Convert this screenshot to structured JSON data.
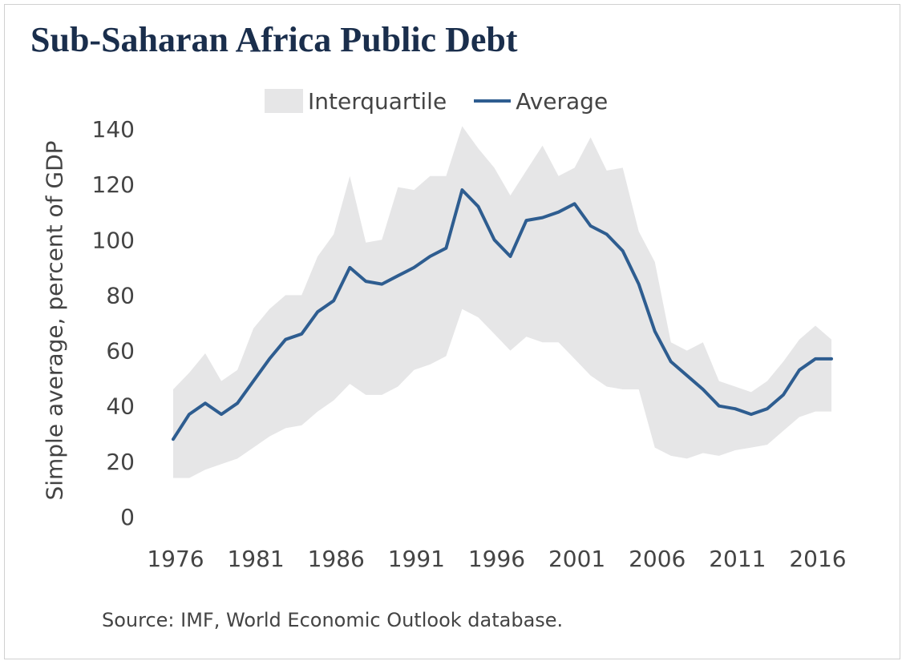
{
  "chart_data": {
    "type": "line",
    "title": "Sub-Saharan Africa Public Debt",
    "ylabel": "Simple average, percent of GDP",
    "xlabel": "",
    "ylim": [
      0,
      140
    ],
    "yticks": [
      0,
      20,
      40,
      60,
      80,
      100,
      120,
      140
    ],
    "xticks": [
      1976,
      1981,
      1986,
      1991,
      1996,
      2001,
      2006,
      2011,
      2016
    ],
    "legend_position": "top-center",
    "grid": false,
    "x": [
      1976,
      1977,
      1978,
      1979,
      1980,
      1981,
      1982,
      1983,
      1984,
      1985,
      1986,
      1987,
      1988,
      1989,
      1990,
      1991,
      1992,
      1993,
      1994,
      1995,
      1996,
      1997,
      1998,
      1999,
      2000,
      2001,
      2002,
      2003,
      2004,
      2005,
      2006,
      2007,
      2008,
      2009,
      2010,
      2011,
      2012,
      2013,
      2014,
      2015,
      2016,
      2017
    ],
    "series": [
      {
        "name": "Interquartile",
        "kind": "band",
        "color": "#e6e6e7",
        "upper": [
          46,
          52,
          59,
          49,
          53,
          68,
          75,
          80,
          80,
          94,
          102,
          123,
          99,
          100,
          119,
          118,
          123,
          123,
          141,
          133,
          126,
          116,
          125,
          134,
          123,
          126,
          137,
          125,
          126,
          103,
          92,
          63,
          60,
          63,
          49,
          47,
          45,
          49,
          56,
          64,
          69,
          64
        ],
        "lower": [
          14,
          14,
          17,
          19,
          21,
          25,
          29,
          32,
          33,
          38,
          42,
          48,
          44,
          44,
          47,
          53,
          55,
          58,
          75,
          72,
          66,
          60,
          65,
          63,
          63,
          57,
          51,
          47,
          46,
          46,
          25,
          22,
          21,
          23,
          22,
          24,
          25,
          26,
          31,
          36,
          38,
          38
        ]
      },
      {
        "name": "Average",
        "kind": "line",
        "color": "#2e5d90",
        "values": [
          28,
          37,
          41,
          37,
          41,
          49,
          57,
          64,
          66,
          74,
          78,
          90,
          85,
          84,
          87,
          90,
          94,
          97,
          118,
          112,
          100,
          94,
          107,
          108,
          110,
          113,
          105,
          102,
          96,
          84,
          67,
          56,
          51,
          46,
          40,
          39,
          37,
          39,
          44,
          53,
          57,
          57
        ]
      }
    ]
  },
  "source": "Source: IMF, World Economic Outlook database."
}
